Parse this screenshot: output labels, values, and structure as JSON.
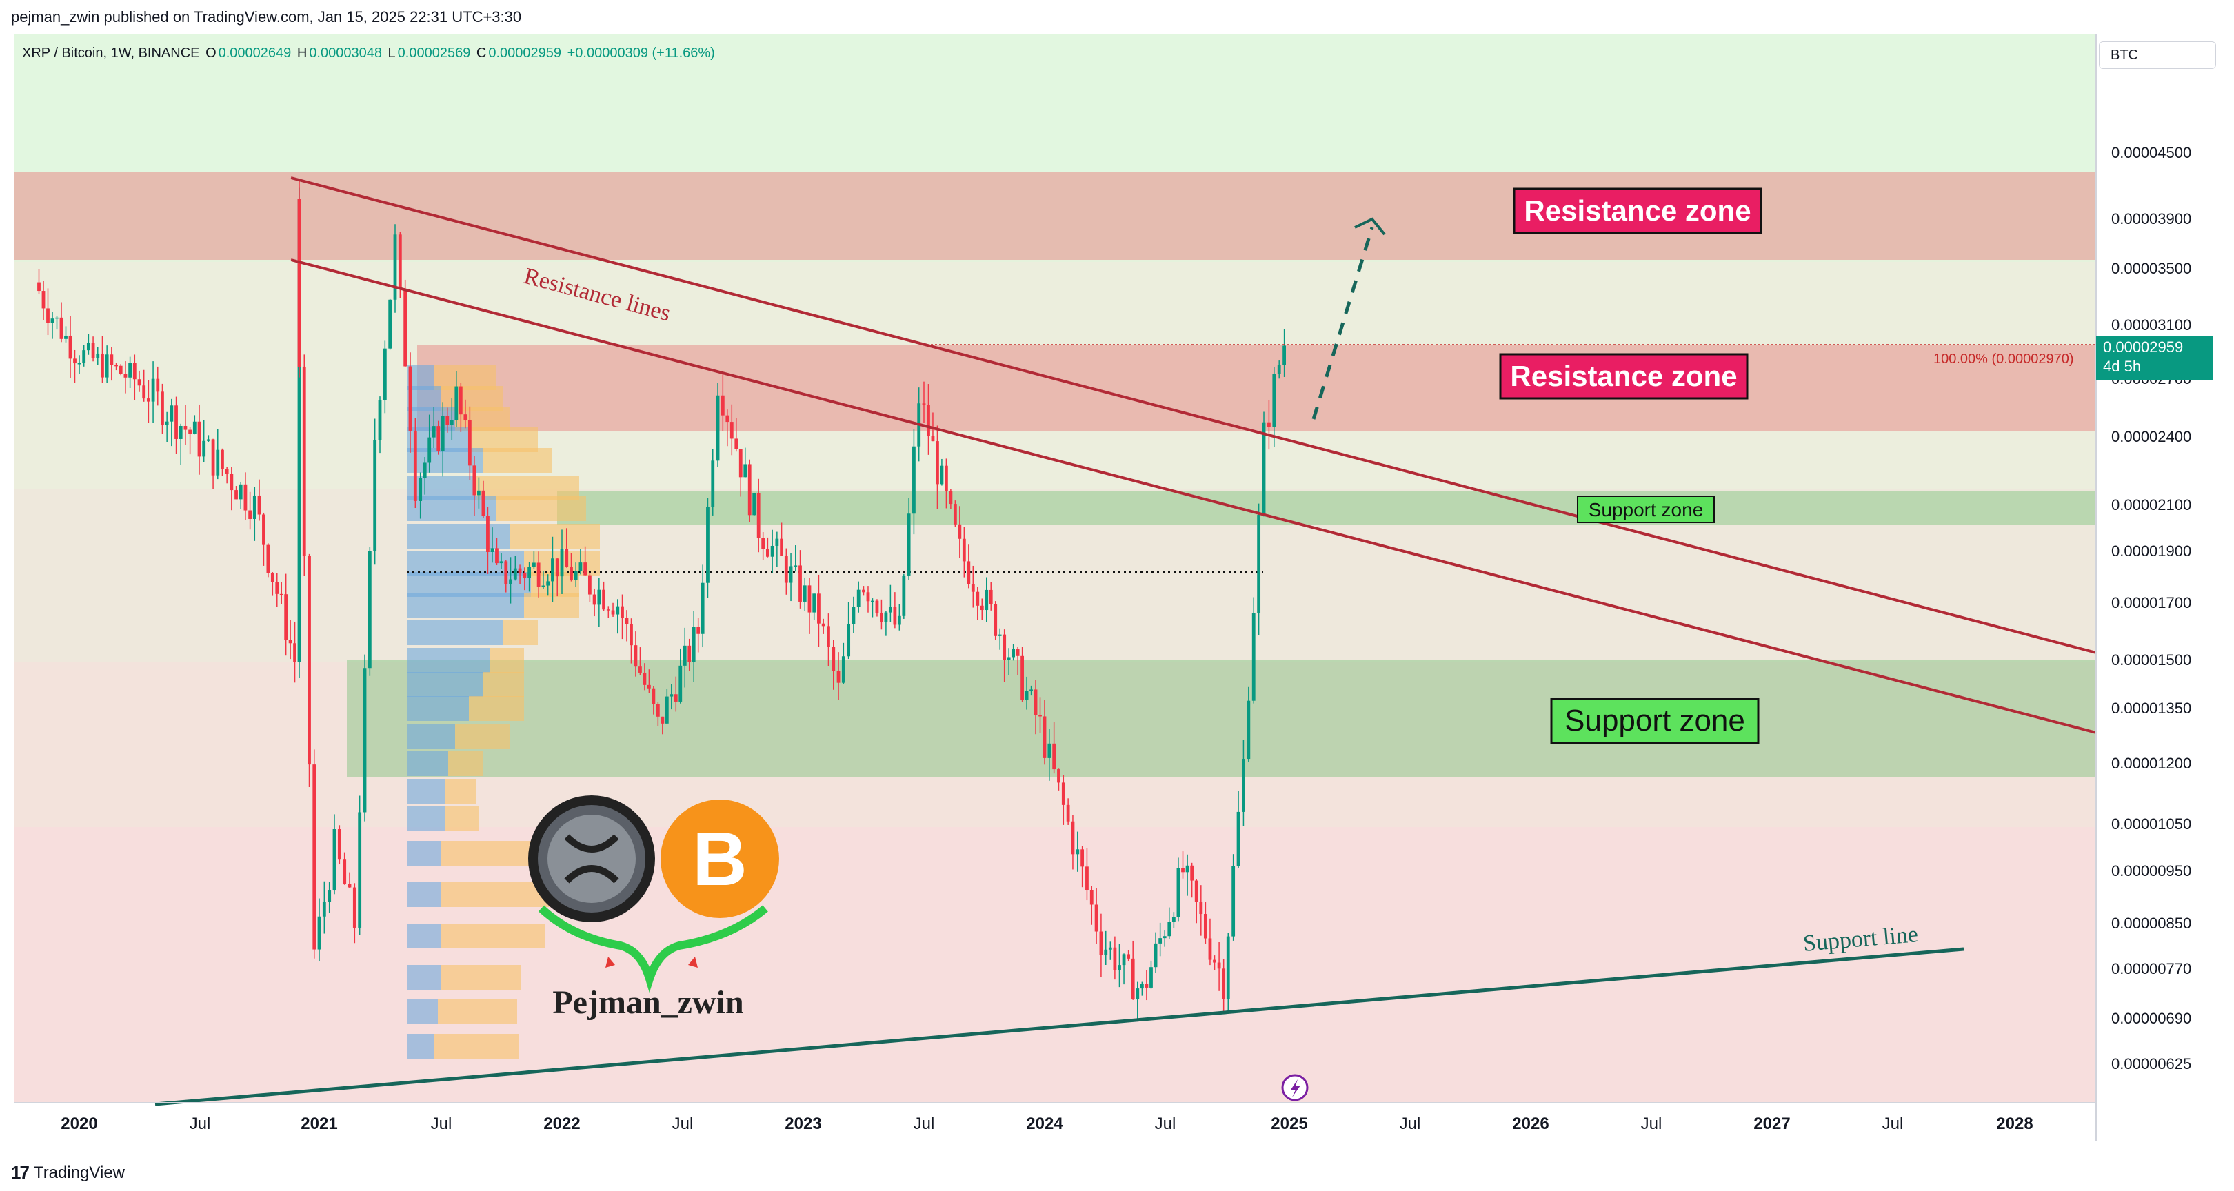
{
  "attribution": "pejman_zwin published on TradingView.com, Jan 15, 2025 22:31 UTC+3:30",
  "footer_brand": "TradingView",
  "symbol_legend": {
    "symbol": "XRP / Bitcoin, 1W, BINANCE",
    "open_label": "O",
    "open": "0.00002649",
    "high_label": "H",
    "high": "0.00003048",
    "low_label": "L",
    "low": "0.00002569",
    "close_label": "C",
    "close": "0.00002959",
    "change": "+0.00000309 (+11.66%)"
  },
  "currency_button": "BTC",
  "last_price": "0.00002959",
  "countdown": "4d 5h",
  "fib_label": "100.00% (0.00002970)",
  "watermark": "Pejman_zwin",
  "colors": {
    "up": "#089981",
    "down": "#f23645",
    "resistance_band": "#e57373",
    "support_band": "#66bb6a",
    "resistance_line": "#b22a36",
    "support_line": "#16665a",
    "zone_label_red": "#e91e63",
    "zone_label_green": "#5de25d"
  },
  "chart_data": {
    "type": "candlestick",
    "title": "XRP / Bitcoin, 1W, BINANCE",
    "y_scale": "log",
    "ylim": [
      5.7e-06,
      5.2e-06
    ],
    "y_ticks": [
      "0.00004500",
      "0.00003900",
      "0.00003500",
      "0.00003100",
      "0.00002700",
      "0.00002400",
      "0.00002100",
      "0.00001900",
      "0.00001700",
      "0.00001500",
      "0.00001350",
      "0.00001200",
      "0.00001050",
      "0.00000950",
      "0.00000850",
      "0.00000770",
      "0.00000690",
      "0.00000625"
    ],
    "x_ticks": [
      "2020",
      "Jul",
      "2021",
      "Jul",
      "2022",
      "Jul",
      "2023",
      "Jul",
      "2024",
      "Jul",
      "2025",
      "Jul",
      "2026",
      "Jul",
      "2027",
      "Jul",
      "2028"
    ],
    "price_path": [
      {
        "date": "2019-11",
        "price": 3.4e-05
      },
      {
        "date": "2020-01",
        "price": 2.9e-05
      },
      {
        "date": "2020-04",
        "price": 2.7e-05
      },
      {
        "date": "2020-07",
        "price": 2.4e-05
      },
      {
        "date": "2020-10",
        "price": 2.1e-05
      },
      {
        "date": "2020-12",
        "price": 1.5e-05
      },
      {
        "date": "2020-12",
        "price": 4.1e-05
      },
      {
        "date": "2021-01",
        "price": 8e-06
      },
      {
        "date": "2021-02",
        "price": 1e-05
      },
      {
        "date": "2021-03",
        "price": 8.5e-06
      },
      {
        "date": "2021-04",
        "price": 2.4e-05
      },
      {
        "date": "2021-05",
        "price": 3.7e-05
      },
      {
        "date": "2021-06",
        "price": 2.2e-05
      },
      {
        "date": "2021-08",
        "price": 2.6e-05
      },
      {
        "date": "2021-10",
        "price": 1.8e-05
      },
      {
        "date": "2022-01",
        "price": 1.85e-05
      },
      {
        "date": "2022-04",
        "price": 1.7e-05
      },
      {
        "date": "2022-06",
        "price": 1.3e-05
      },
      {
        "date": "2022-08",
        "price": 1.6e-05
      },
      {
        "date": "2022-09",
        "price": 2.7e-05
      },
      {
        "date": "2022-11",
        "price": 2e-05
      },
      {
        "date": "2023-02",
        "price": 1.65e-05
      },
      {
        "date": "2023-03",
        "price": 1.4e-05
      },
      {
        "date": "2023-04",
        "price": 1.8e-05
      },
      {
        "date": "2023-06",
        "price": 1.6e-05
      },
      {
        "date": "2023-07",
        "price": 2.6e-05
      },
      {
        "date": "2023-09",
        "price": 1.9e-05
      },
      {
        "date": "2023-11",
        "price": 1.6e-05
      },
      {
        "date": "2024-01",
        "price": 1.3e-05
      },
      {
        "date": "2024-04",
        "price": 8.2e-06
      },
      {
        "date": "2024-06",
        "price": 7.3e-06
      },
      {
        "date": "2024-08",
        "price": 9.5e-06
      },
      {
        "date": "2024-10",
        "price": 7.5e-06
      },
      {
        "date": "2024-11",
        "price": 1.2e-05
      },
      {
        "date": "2024-12",
        "price": 2.4e-05
      },
      {
        "date": "2025-01",
        "price": 2.96e-05
      }
    ],
    "resistance_zones": [
      {
        "label": "Resistance zone",
        "low": 3.5e-05,
        "high": 4.3e-05
      },
      {
        "label": "Resistance zone",
        "low": 2.45e-05,
        "high": 2.98e-05
      }
    ],
    "support_zones": [
      {
        "label": "Support zone",
        "low": 1.95e-05,
        "high": 2.12e-05
      },
      {
        "label": "Support zone",
        "low": 1.15e-05,
        "high": 1.5e-05
      }
    ],
    "lines": [
      {
        "label": "Resistance lines",
        "from": {
          "date": "2020-12",
          "price": 4.3e-05
        },
        "to": {
          "date": "2028-04",
          "price": 1.5e-05
        }
      },
      {
        "label": "",
        "from": {
          "date": "2020-12",
          "price": 3.5e-05
        },
        "to": {
          "date": "2028-04",
          "price": 1.25e-05
        }
      },
      {
        "label": "Support line",
        "from": {
          "date": "2020-04",
          "price": 5.9e-06
        },
        "to": {
          "date": "2027-09",
          "price": 8e-06
        }
      }
    ],
    "projection": {
      "from": {
        "date": "2025-01",
        "price": 2.6e-05
      },
      "to": {
        "date": "2025-04",
        "price": 3.85e-05
      }
    },
    "fib_level": 2.97e-05
  }
}
